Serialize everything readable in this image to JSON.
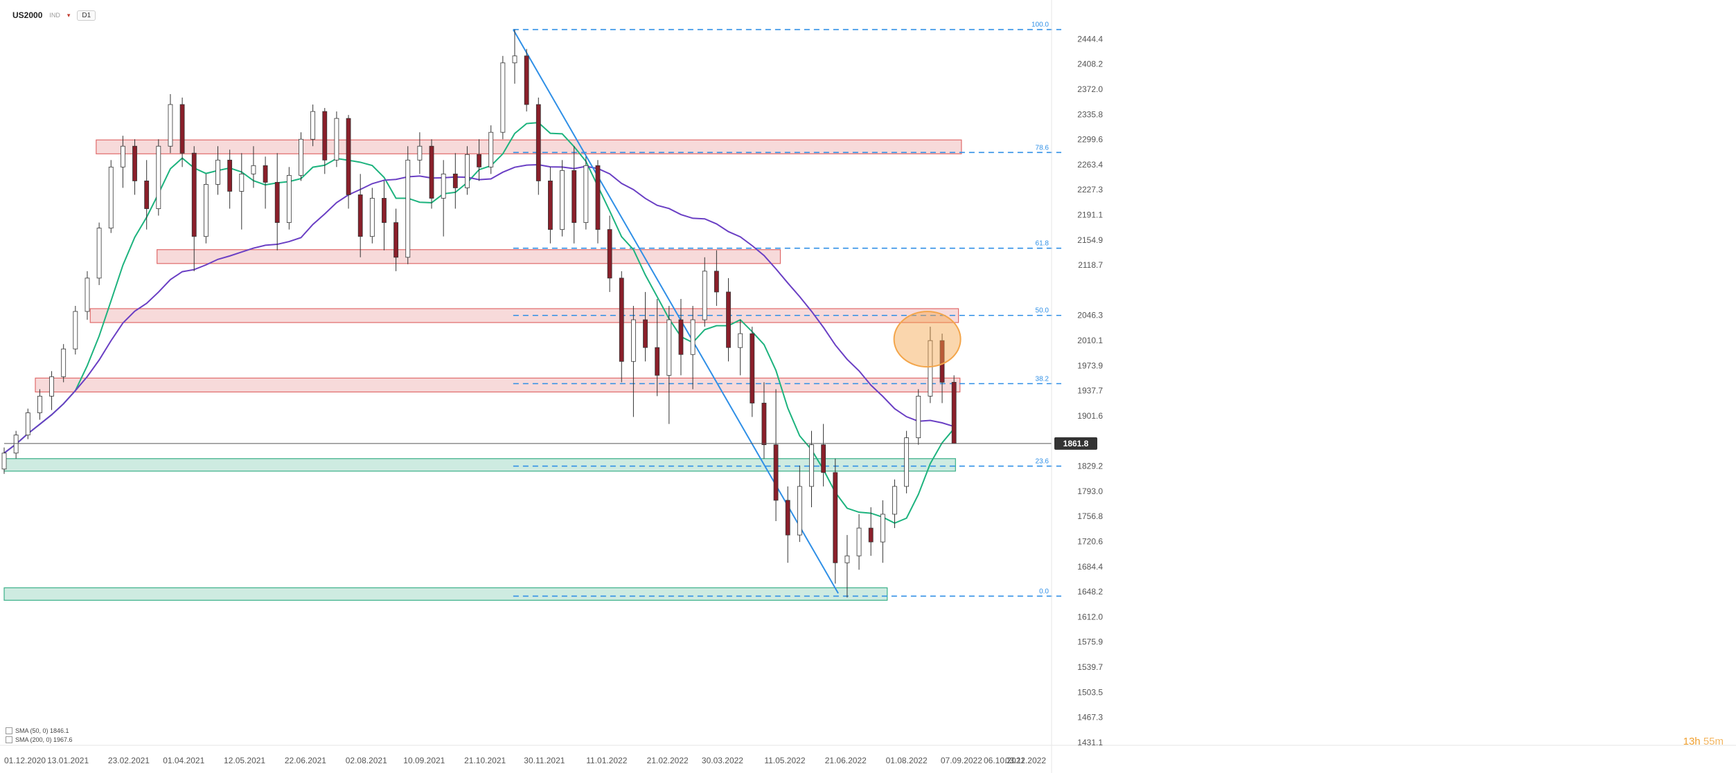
{
  "header": {
    "symbol": "US2000",
    "indicator": "IND",
    "timeframe": "D1"
  },
  "legend": [
    {
      "text": "SMA (50, 0) 1846.1",
      "color": "#1db37e"
    },
    {
      "text": "SMA (200, 0) 1967.6",
      "color": "#6a3fc4"
    }
  ],
  "timer": {
    "hours": "13h",
    "minutes": "55m"
  },
  "colors": {
    "up": "#ffffff",
    "down": "#8a1f2a",
    "wick": "#333333",
    "sma50": "#1db37e",
    "sma200": "#6a3fc4",
    "trend": "#2f8fe6",
    "fib": "#2f8fe6",
    "res": "#e06a6a",
    "sup": "#3bb089",
    "highlight": "#f3a54a"
  },
  "chart_data": {
    "type": "candlestick",
    "symbol": "US2000",
    "timeframe": "D1",
    "y_range": [
      1431.1,
      2480.6
    ],
    "y_ticks": [
      2444.4,
      2408.2,
      2372.0,
      2335.8,
      2299.6,
      2263.4,
      2227.3,
      2191.1,
      2154.9,
      2118.7,
      2046.3,
      2010.1,
      1973.9,
      1937.7,
      1901.6,
      1829.2,
      1793.0,
      1756.8,
      1720.6,
      1684.4,
      1648.2,
      1612.0,
      1575.9,
      1539.7,
      1503.5,
      1467.3,
      1431.1
    ],
    "x_start": "2020-12-01",
    "x_end": "2022-11-03",
    "x_ticks": [
      "01.12.2020",
      "13.01.2021",
      "23.02.2021",
      "01.04.2021",
      "12.05.2021",
      "22.06.2021",
      "02.08.2021",
      "10.09.2021",
      "21.10.2021",
      "30.11.2021",
      "11.01.2022",
      "21.02.2022",
      "30.03.2022",
      "11.05.2022",
      "21.06.2022",
      "01.08.2022",
      "07.09.2022",
      "06.10.2022",
      "03.11.2022"
    ],
    "last_price": 1861.8,
    "fibonacci": [
      {
        "level": "100.0",
        "price": 2458.0
      },
      {
        "level": "78.6",
        "price": 2281.0
      },
      {
        "level": "61.8",
        "price": 2143.0
      },
      {
        "level": "50.0",
        "price": 2046.3
      },
      {
        "level": "38.2",
        "price": 1948.0
      },
      {
        "level": "23.6",
        "price": 1829.2
      },
      {
        "level": "0.0",
        "price": 1642.0
      }
    ],
    "zones": [
      {
        "kind": "resistance",
        "from": "2021-02-01",
        "to": "2022-09-07",
        "low": 2279,
        "high": 2299
      },
      {
        "kind": "resistance",
        "from": "2021-03-14",
        "to": "2022-05-08",
        "low": 2121,
        "high": 2141
      },
      {
        "kind": "resistance",
        "from": "2021-01-28",
        "to": "2022-09-05",
        "low": 2036,
        "high": 2056
      },
      {
        "kind": "resistance",
        "from": "2020-12-22",
        "to": "2022-09-06",
        "low": 1936,
        "high": 1956
      },
      {
        "kind": "support",
        "from": "2020-12-01",
        "to": "2022-09-03",
        "low": 1822,
        "high": 1840
      },
      {
        "kind": "support",
        "from": "2020-12-01",
        "to": "2022-07-19",
        "low": 1636,
        "high": 1654
      }
    ],
    "trendline": [
      {
        "date": "2021-11-09",
        "price": 2458
      },
      {
        "date": "2022-06-16",
        "price": 1646
      }
    ],
    "highlight": {
      "date": "2022-08-15",
      "price": 2012
    },
    "series_ohlc": [
      [
        "2020-12-01",
        1825,
        1856,
        1818,
        1848
      ],
      [
        "2020-12-09",
        1848,
        1880,
        1840,
        1874
      ],
      [
        "2020-12-17",
        1874,
        1912,
        1868,
        1906
      ],
      [
        "2020-12-25",
        1906,
        1940,
        1896,
        1930
      ],
      [
        "2021-01-02",
        1930,
        1966,
        1910,
        1958
      ],
      [
        "2021-01-10",
        1958,
        2005,
        1950,
        1998
      ],
      [
        "2021-01-18",
        1998,
        2060,
        1990,
        2052
      ],
      [
        "2021-01-26",
        2052,
        2110,
        2040,
        2100
      ],
      [
        "2021-02-03",
        2100,
        2180,
        2090,
        2172
      ],
      [
        "2021-02-11",
        2172,
        2270,
        2165,
        2260
      ],
      [
        "2021-02-19",
        2260,
        2305,
        2230,
        2290
      ],
      [
        "2021-02-27",
        2290,
        2300,
        2220,
        2240
      ],
      [
        "2021-03-07",
        2240,
        2270,
        2170,
        2200
      ],
      [
        "2021-03-15",
        2200,
        2300,
        2190,
        2290
      ],
      [
        "2021-03-23",
        2290,
        2365,
        2280,
        2350
      ],
      [
        "2021-03-31",
        2350,
        2360,
        2260,
        2280
      ],
      [
        "2021-04-08",
        2280,
        2290,
        2110,
        2160
      ],
      [
        "2021-04-16",
        2160,
        2250,
        2150,
        2235
      ],
      [
        "2021-04-24",
        2235,
        2290,
        2220,
        2270
      ],
      [
        "2021-05-02",
        2270,
        2285,
        2200,
        2225
      ],
      [
        "2021-05-10",
        2225,
        2280,
        2170,
        2250
      ],
      [
        "2021-05-18",
        2250,
        2290,
        2230,
        2262
      ],
      [
        "2021-05-26",
        2262,
        2275,
        2200,
        2238
      ],
      [
        "2021-06-03",
        2238,
        2280,
        2140,
        2180
      ],
      [
        "2021-06-11",
        2180,
        2260,
        2170,
        2248
      ],
      [
        "2021-06-19",
        2248,
        2310,
        2240,
        2300
      ],
      [
        "2021-06-27",
        2300,
        2350,
        2290,
        2340
      ],
      [
        "2021-07-05",
        2340,
        2345,
        2250,
        2270
      ],
      [
        "2021-07-13",
        2270,
        2340,
        2260,
        2330
      ],
      [
        "2021-07-21",
        2330,
        2335,
        2200,
        2220
      ],
      [
        "2021-07-29",
        2220,
        2250,
        2130,
        2160
      ],
      [
        "2021-08-06",
        2160,
        2230,
        2150,
        2215
      ],
      [
        "2021-08-14",
        2215,
        2240,
        2140,
        2180
      ],
      [
        "2021-08-22",
        2180,
        2200,
        2110,
        2130
      ],
      [
        "2021-08-30",
        2130,
        2290,
        2120,
        2270
      ],
      [
        "2021-09-07",
        2270,
        2310,
        2250,
        2290
      ],
      [
        "2021-09-15",
        2290,
        2300,
        2200,
        2215
      ],
      [
        "2021-09-23",
        2215,
        2270,
        2160,
        2250
      ],
      [
        "2021-10-01",
        2250,
        2280,
        2200,
        2230
      ],
      [
        "2021-10-09",
        2230,
        2290,
        2220,
        2278
      ],
      [
        "2021-10-17",
        2278,
        2300,
        2240,
        2260
      ],
      [
        "2021-10-25",
        2260,
        2320,
        2250,
        2310
      ],
      [
        "2021-11-02",
        2310,
        2420,
        2300,
        2410
      ],
      [
        "2021-11-10",
        2410,
        2458,
        2380,
        2420
      ],
      [
        "2021-11-18",
        2420,
        2430,
        2340,
        2350
      ],
      [
        "2021-11-26",
        2350,
        2360,
        2220,
        2240
      ],
      [
        "2021-12-04",
        2240,
        2260,
        2150,
        2170
      ],
      [
        "2021-12-12",
        2170,
        2270,
        2160,
        2255
      ],
      [
        "2021-12-20",
        2255,
        2290,
        2150,
        2180
      ],
      [
        "2021-12-28",
        2180,
        2275,
        2170,
        2262
      ],
      [
        "2022-01-05",
        2262,
        2270,
        2150,
        2170
      ],
      [
        "2022-01-13",
        2170,
        2190,
        2080,
        2100
      ],
      [
        "2022-01-21",
        2100,
        2110,
        1950,
        1980
      ],
      [
        "2022-01-29",
        1980,
        2060,
        1900,
        2040
      ],
      [
        "2022-02-06",
        2040,
        2080,
        1980,
        2000
      ],
      [
        "2022-02-14",
        2000,
        2070,
        1930,
        1960
      ],
      [
        "2022-02-22",
        1960,
        2060,
        1890,
        2040
      ],
      [
        "2022-03-02",
        2040,
        2070,
        1960,
        1990
      ],
      [
        "2022-03-10",
        1990,
        2060,
        1940,
        2040
      ],
      [
        "2022-03-18",
        2040,
        2130,
        2030,
        2110
      ],
      [
        "2022-03-26",
        2110,
        2140,
        2060,
        2080
      ],
      [
        "2022-04-03",
        2080,
        2100,
        1980,
        2000
      ],
      [
        "2022-04-11",
        2000,
        2040,
        1960,
        2020
      ],
      [
        "2022-04-19",
        2020,
        2030,
        1900,
        1920
      ],
      [
        "2022-04-27",
        1920,
        1950,
        1840,
        1860
      ],
      [
        "2022-05-05",
        1860,
        1940,
        1750,
        1780
      ],
      [
        "2022-05-13",
        1780,
        1800,
        1690,
        1730
      ],
      [
        "2022-05-21",
        1730,
        1830,
        1720,
        1800
      ],
      [
        "2022-05-29",
        1800,
        1880,
        1770,
        1860
      ],
      [
        "2022-06-06",
        1860,
        1890,
        1800,
        1820
      ],
      [
        "2022-06-14",
        1820,
        1840,
        1660,
        1690
      ],
      [
        "2022-06-22",
        1690,
        1730,
        1640,
        1700
      ],
      [
        "2022-06-30",
        1700,
        1760,
        1680,
        1740
      ],
      [
        "2022-07-08",
        1740,
        1770,
        1700,
        1720
      ],
      [
        "2022-07-16",
        1720,
        1780,
        1690,
        1760
      ],
      [
        "2022-07-24",
        1760,
        1810,
        1740,
        1800
      ],
      [
        "2022-08-01",
        1800,
        1880,
        1790,
        1870
      ],
      [
        "2022-08-09",
        1870,
        1940,
        1860,
        1930
      ],
      [
        "2022-08-17",
        1930,
        2030,
        1920,
        2010
      ],
      [
        "2022-08-25",
        2010,
        2020,
        1920,
        1950
      ],
      [
        "2022-09-02",
        1950,
        1960,
        1880,
        1862
      ]
    ]
  }
}
